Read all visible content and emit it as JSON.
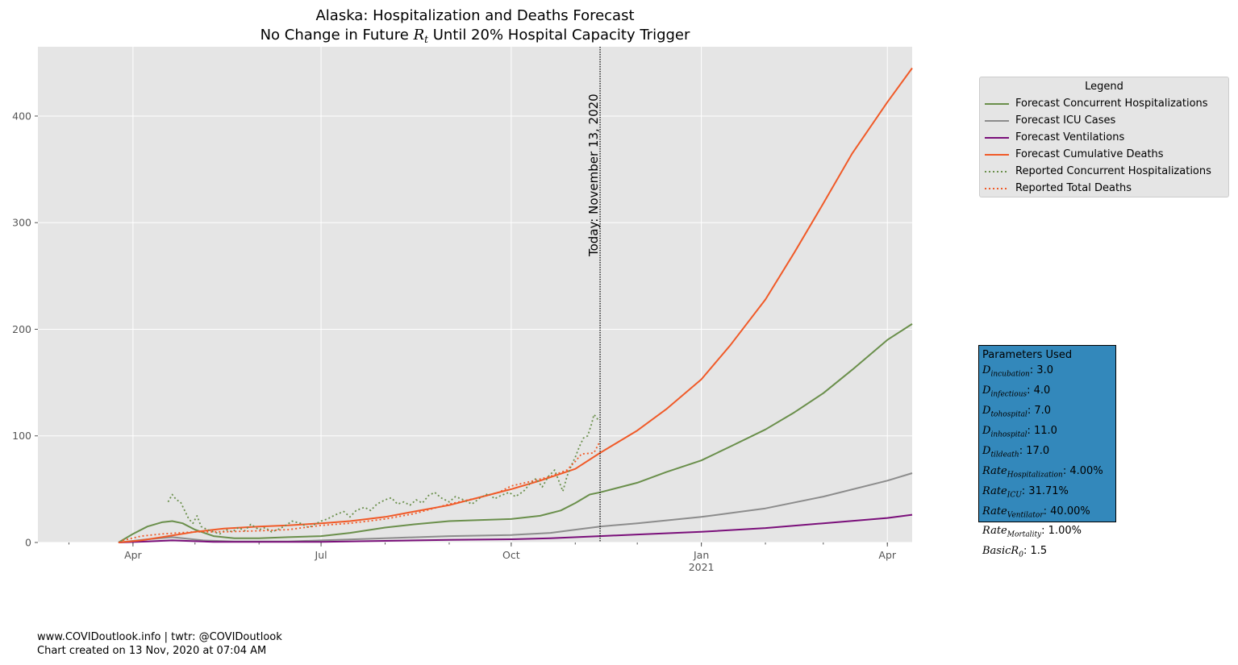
{
  "chart_data": {
    "type": "line",
    "title": "Alaska: Hospitalization and Deaths Forecast",
    "subtitle_prefix": "No Change in Future ",
    "subtitle_symbol": "R",
    "subtitle_subscript": "t",
    "subtitle_suffix": " Until 20% Hospital Capacity Trigger",
    "xlabel": "",
    "ylabel": "",
    "x_start_date": "2020-02-15",
    "x_end_date": "2021-04-13",
    "ylim": [
      0,
      465
    ],
    "yticks": [
      0,
      100,
      200,
      300,
      400
    ],
    "xticks": [
      {
        "date": "2020-04-01",
        "label": "Apr"
      },
      {
        "date": "2020-07-01",
        "label": "Jul"
      },
      {
        "date": "2020-10-01",
        "label": "Oct"
      },
      {
        "date": "2021-01-01",
        "label": "Jan"
      },
      {
        "date": "2021-04-01",
        "label": "Apr"
      }
    ],
    "year_label": {
      "date": "2021-01-01",
      "label": "2021"
    },
    "grid": true,
    "today": {
      "date": "2020-11-13",
      "label": "Today: November 13, 2020"
    },
    "series": [
      {
        "name": "Forecast Concurrent Hospitalizations",
        "color": "#6a8f4b",
        "style": "solid",
        "points": [
          [
            "2020-03-25",
            0
          ],
          [
            "2020-04-01",
            8
          ],
          [
            "2020-04-08",
            15
          ],
          [
            "2020-04-15",
            19
          ],
          [
            "2020-04-20",
            20
          ],
          [
            "2020-04-25",
            18
          ],
          [
            "2020-05-01",
            12
          ],
          [
            "2020-05-10",
            6
          ],
          [
            "2020-05-20",
            4
          ],
          [
            "2020-06-01",
            4
          ],
          [
            "2020-06-15",
            5
          ],
          [
            "2020-07-01",
            6
          ],
          [
            "2020-07-15",
            9
          ],
          [
            "2020-08-01",
            14
          ],
          [
            "2020-08-15",
            17
          ],
          [
            "2020-09-01",
            20
          ],
          [
            "2020-09-15",
            21
          ],
          [
            "2020-10-01",
            22
          ],
          [
            "2020-10-15",
            25
          ],
          [
            "2020-10-25",
            30
          ],
          [
            "2020-11-01",
            37
          ],
          [
            "2020-11-08",
            45
          ],
          [
            "2020-11-13",
            47
          ],
          [
            "2020-12-01",
            56
          ],
          [
            "2020-12-15",
            66
          ],
          [
            "2021-01-01",
            77
          ],
          [
            "2021-01-15",
            90
          ],
          [
            "2021-02-01",
            106
          ],
          [
            "2021-02-15",
            122
          ],
          [
            "2021-03-01",
            140
          ],
          [
            "2021-03-15",
            162
          ],
          [
            "2021-04-01",
            190
          ],
          [
            "2021-04-13",
            205
          ]
        ]
      },
      {
        "name": "Forecast ICU Cases",
        "color": "#8c8c8c",
        "style": "solid",
        "points": [
          [
            "2020-03-25",
            0
          ],
          [
            "2020-04-08",
            3
          ],
          [
            "2020-04-20",
            5
          ],
          [
            "2020-05-05",
            2
          ],
          [
            "2020-05-20",
            1
          ],
          [
            "2020-06-15",
            1
          ],
          [
            "2020-07-01",
            2
          ],
          [
            "2020-08-01",
            4
          ],
          [
            "2020-09-01",
            6
          ],
          [
            "2020-10-01",
            7
          ],
          [
            "2020-10-20",
            9
          ],
          [
            "2020-11-01",
            12
          ],
          [
            "2020-11-13",
            15
          ],
          [
            "2020-12-01",
            18
          ],
          [
            "2021-01-01",
            24
          ],
          [
            "2021-02-01",
            32
          ],
          [
            "2021-03-01",
            43
          ],
          [
            "2021-04-01",
            58
          ],
          [
            "2021-04-13",
            65
          ]
        ]
      },
      {
        "name": "Forecast Ventilations",
        "color": "#7a0f7a",
        "style": "solid",
        "points": [
          [
            "2020-03-25",
            0
          ],
          [
            "2020-04-08",
            1
          ],
          [
            "2020-04-20",
            2
          ],
          [
            "2020-05-10",
            0.5
          ],
          [
            "2020-07-01",
            0.5
          ],
          [
            "2020-08-01",
            1.5
          ],
          [
            "2020-09-01",
            2.5
          ],
          [
            "2020-10-01",
            3
          ],
          [
            "2020-10-20",
            4
          ],
          [
            "2020-11-13",
            6
          ],
          [
            "2020-12-01",
            7.5
          ],
          [
            "2021-01-01",
            10
          ],
          [
            "2021-02-01",
            13.5
          ],
          [
            "2021-03-01",
            18
          ],
          [
            "2021-04-01",
            23
          ],
          [
            "2021-04-13",
            26
          ]
        ]
      },
      {
        "name": "Forecast Cumulative Deaths",
        "color": "#f05a28",
        "style": "solid",
        "points": [
          [
            "2020-03-25",
            0
          ],
          [
            "2020-04-05",
            2
          ],
          [
            "2020-04-15",
            5
          ],
          [
            "2020-05-01",
            10
          ],
          [
            "2020-05-15",
            13
          ],
          [
            "2020-06-01",
            15
          ],
          [
            "2020-06-15",
            16
          ],
          [
            "2020-07-01",
            18
          ],
          [
            "2020-07-15",
            20
          ],
          [
            "2020-08-01",
            24
          ],
          [
            "2020-08-15",
            29
          ],
          [
            "2020-09-01",
            35
          ],
          [
            "2020-09-15",
            42
          ],
          [
            "2020-10-01",
            50
          ],
          [
            "2020-10-15",
            58
          ],
          [
            "2020-11-01",
            69
          ],
          [
            "2020-11-13",
            84
          ],
          [
            "2020-12-01",
            105
          ],
          [
            "2020-12-15",
            125
          ],
          [
            "2021-01-01",
            153
          ],
          [
            "2021-01-15",
            185
          ],
          [
            "2021-02-01",
            228
          ],
          [
            "2021-02-15",
            272
          ],
          [
            "2021-03-01",
            318
          ],
          [
            "2021-03-15",
            365
          ],
          [
            "2021-04-01",
            413
          ],
          [
            "2021-04-13",
            445
          ]
        ]
      },
      {
        "name": "Reported Concurrent Hospitalizations",
        "color": "#6a8f4b",
        "style": "dotted",
        "points": [
          [
            "2020-04-18",
            38
          ],
          [
            "2020-04-20",
            45
          ],
          [
            "2020-04-22",
            40
          ],
          [
            "2020-04-24",
            38
          ],
          [
            "2020-04-26",
            30
          ],
          [
            "2020-04-28",
            22
          ],
          [
            "2020-04-30",
            18
          ],
          [
            "2020-05-02",
            25
          ],
          [
            "2020-05-04",
            15
          ],
          [
            "2020-05-07",
            12
          ],
          [
            "2020-05-10",
            10
          ],
          [
            "2020-05-13",
            8
          ],
          [
            "2020-05-16",
            12
          ],
          [
            "2020-05-19",
            10
          ],
          [
            "2020-05-22",
            14
          ],
          [
            "2020-05-25",
            11
          ],
          [
            "2020-05-28",
            17
          ],
          [
            "2020-06-01",
            12
          ],
          [
            "2020-06-04",
            14
          ],
          [
            "2020-06-07",
            10
          ],
          [
            "2020-06-10",
            12
          ],
          [
            "2020-06-14",
            16
          ],
          [
            "2020-06-17",
            20
          ],
          [
            "2020-06-21",
            18
          ],
          [
            "2020-06-25",
            14
          ],
          [
            "2020-06-28",
            17
          ],
          [
            "2020-07-01",
            20
          ],
          [
            "2020-07-04",
            22
          ],
          [
            "2020-07-08",
            26
          ],
          [
            "2020-07-12",
            29
          ],
          [
            "2020-07-15",
            24
          ],
          [
            "2020-07-18",
            30
          ],
          [
            "2020-07-22",
            33
          ],
          [
            "2020-07-25",
            30
          ],
          [
            "2020-07-28",
            36
          ],
          [
            "2020-08-01",
            40
          ],
          [
            "2020-08-04",
            42
          ],
          [
            "2020-08-07",
            36
          ],
          [
            "2020-08-10",
            38
          ],
          [
            "2020-08-13",
            35
          ],
          [
            "2020-08-16",
            40
          ],
          [
            "2020-08-19",
            37
          ],
          [
            "2020-08-22",
            44
          ],
          [
            "2020-08-25",
            47
          ],
          [
            "2020-08-28",
            42
          ],
          [
            "2020-09-01",
            38
          ],
          [
            "2020-09-04",
            43
          ],
          [
            "2020-09-08",
            40
          ],
          [
            "2020-09-12",
            36
          ],
          [
            "2020-09-16",
            42
          ],
          [
            "2020-09-20",
            46
          ],
          [
            "2020-09-23",
            41
          ],
          [
            "2020-09-26",
            44
          ],
          [
            "2020-09-30",
            47
          ],
          [
            "2020-10-03",
            43
          ],
          [
            "2020-10-07",
            48
          ],
          [
            "2020-10-10",
            55
          ],
          [
            "2020-10-13",
            60
          ],
          [
            "2020-10-16",
            52
          ],
          [
            "2020-10-19",
            62
          ],
          [
            "2020-10-22",
            68
          ],
          [
            "2020-10-24",
            58
          ],
          [
            "2020-10-26",
            48
          ],
          [
            "2020-10-28",
            62
          ],
          [
            "2020-10-30",
            72
          ],
          [
            "2020-11-01",
            80
          ],
          [
            "2020-11-03",
            90
          ],
          [
            "2020-11-05",
            98
          ],
          [
            "2020-11-07",
            100
          ],
          [
            "2020-11-09",
            112
          ],
          [
            "2020-11-10",
            120
          ],
          [
            "2020-11-11",
            118
          ],
          [
            "2020-11-12",
            115
          ]
        ]
      },
      {
        "name": "Reported Total Deaths",
        "color": "#f05a28",
        "style": "dotted",
        "points": [
          [
            "2020-03-27",
            2
          ],
          [
            "2020-04-05",
            6
          ],
          [
            "2020-04-15",
            8
          ],
          [
            "2020-05-01",
            10
          ],
          [
            "2020-05-15",
            10
          ],
          [
            "2020-06-01",
            11
          ],
          [
            "2020-06-15",
            12
          ],
          [
            "2020-07-01",
            16
          ],
          [
            "2020-07-15",
            18
          ],
          [
            "2020-08-01",
            22
          ],
          [
            "2020-08-15",
            27
          ],
          [
            "2020-09-01",
            36
          ],
          [
            "2020-09-15",
            42
          ],
          [
            "2020-09-25",
            47
          ],
          [
            "2020-10-01",
            53
          ],
          [
            "2020-10-10",
            57
          ],
          [
            "2020-10-20",
            62
          ],
          [
            "2020-10-28",
            68
          ],
          [
            "2020-11-01",
            76
          ],
          [
            "2020-11-04",
            83
          ],
          [
            "2020-11-10",
            84
          ],
          [
            "2020-11-13",
            95
          ]
        ]
      }
    ]
  },
  "legend": {
    "title": "Legend",
    "placement": "outside-right",
    "items": [
      {
        "label": "Forecast Concurrent Hospitalizations",
        "color": "#6a8f4b",
        "style": "solid"
      },
      {
        "label": "Forecast ICU Cases",
        "color": "#8c8c8c",
        "style": "solid"
      },
      {
        "label": "Forecast Ventilations",
        "color": "#7a0f7a",
        "style": "solid"
      },
      {
        "label": "Forecast Cumulative Deaths",
        "color": "#f05a28",
        "style": "solid"
      },
      {
        "label": "Reported Concurrent Hospitalizations",
        "color": "#6a8f4b",
        "style": "dotted"
      },
      {
        "label": "Reported Total Deaths",
        "color": "#f05a28",
        "style": "dotted"
      }
    ]
  },
  "parameters": {
    "title": "Parameters Used",
    "items": [
      {
        "symbol": "D",
        "sub": "incubation",
        "value": ": 3.0"
      },
      {
        "symbol": "D",
        "sub": "infectious",
        "value": ": 4.0"
      },
      {
        "symbol": "D",
        "sub": "tohospital",
        "value": ": 7.0"
      },
      {
        "symbol": "D",
        "sub": "inhospital",
        "value": ": 11.0"
      },
      {
        "symbol": "D",
        "sub": "tildeath",
        "value": ": 17.0"
      },
      {
        "symbol": "Rate",
        "sub": "Hospitalization",
        "value": ": 4.00%"
      },
      {
        "symbol": "Rate",
        "sub": "ICU",
        "value": ": 31.71%"
      },
      {
        "symbol": "Rate",
        "sub": "Ventilator",
        "value": ": 40.00%"
      },
      {
        "symbol": "Rate",
        "sub": "Mortality",
        "value": ": 1.00%"
      },
      {
        "symbol": "BasicR",
        "sub": "0",
        "value": ": 1.5"
      }
    ]
  },
  "footer": {
    "line1": "www.COVIDoutlook.info | twtr: @COVIDoutlook",
    "line2": "Chart created on 13 Nov, 2020 at 07:04 AM"
  },
  "colors": {
    "plot_background": "#e5e5e5",
    "grid": "#ffffff",
    "params_background": "#3388bb"
  }
}
